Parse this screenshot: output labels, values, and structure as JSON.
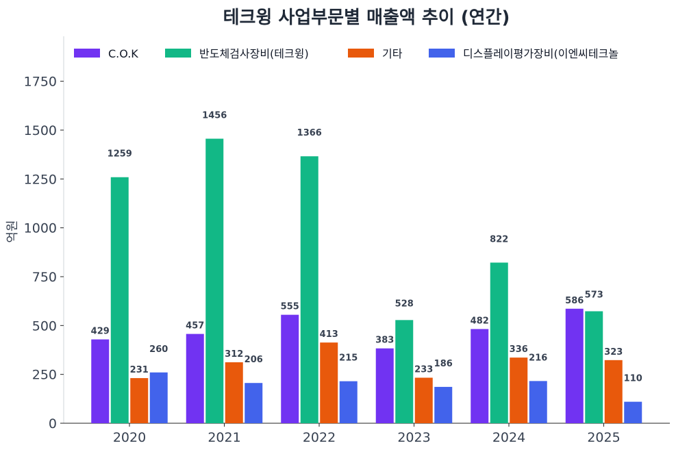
{
  "chart_data": {
    "type": "bar",
    "title": "테크윙 사업부문별 매출액 추이 (연간)",
    "xlabel": "",
    "ylabel": "억원",
    "ylim": [
      0,
      1980
    ],
    "yticks": [
      0,
      250,
      500,
      750,
      1000,
      1250,
      1500,
      1750
    ],
    "categories": [
      "2020",
      "2021",
      "2022",
      "2023",
      "2024",
      "2025"
    ],
    "legend_position": "top",
    "grid": false,
    "series": [
      {
        "name": "C.O.K",
        "color": "#7133f2",
        "values": [
          429,
          457,
          555,
          383,
          482,
          586
        ]
      },
      {
        "name": "반도체검사장비(테크윙)",
        "color": "#12b886",
        "values": [
          1259,
          1456,
          1366,
          528,
          822,
          573
        ]
      },
      {
        "name": "기타",
        "color": "#e8590c",
        "values": [
          231,
          312,
          413,
          233,
          336,
          323
        ]
      },
      {
        "name": "디스플레이평가장비(이엔씨테크놀",
        "color": "#4263eb",
        "values": [
          260,
          206,
          215,
          186,
          216,
          110
        ]
      }
    ]
  }
}
